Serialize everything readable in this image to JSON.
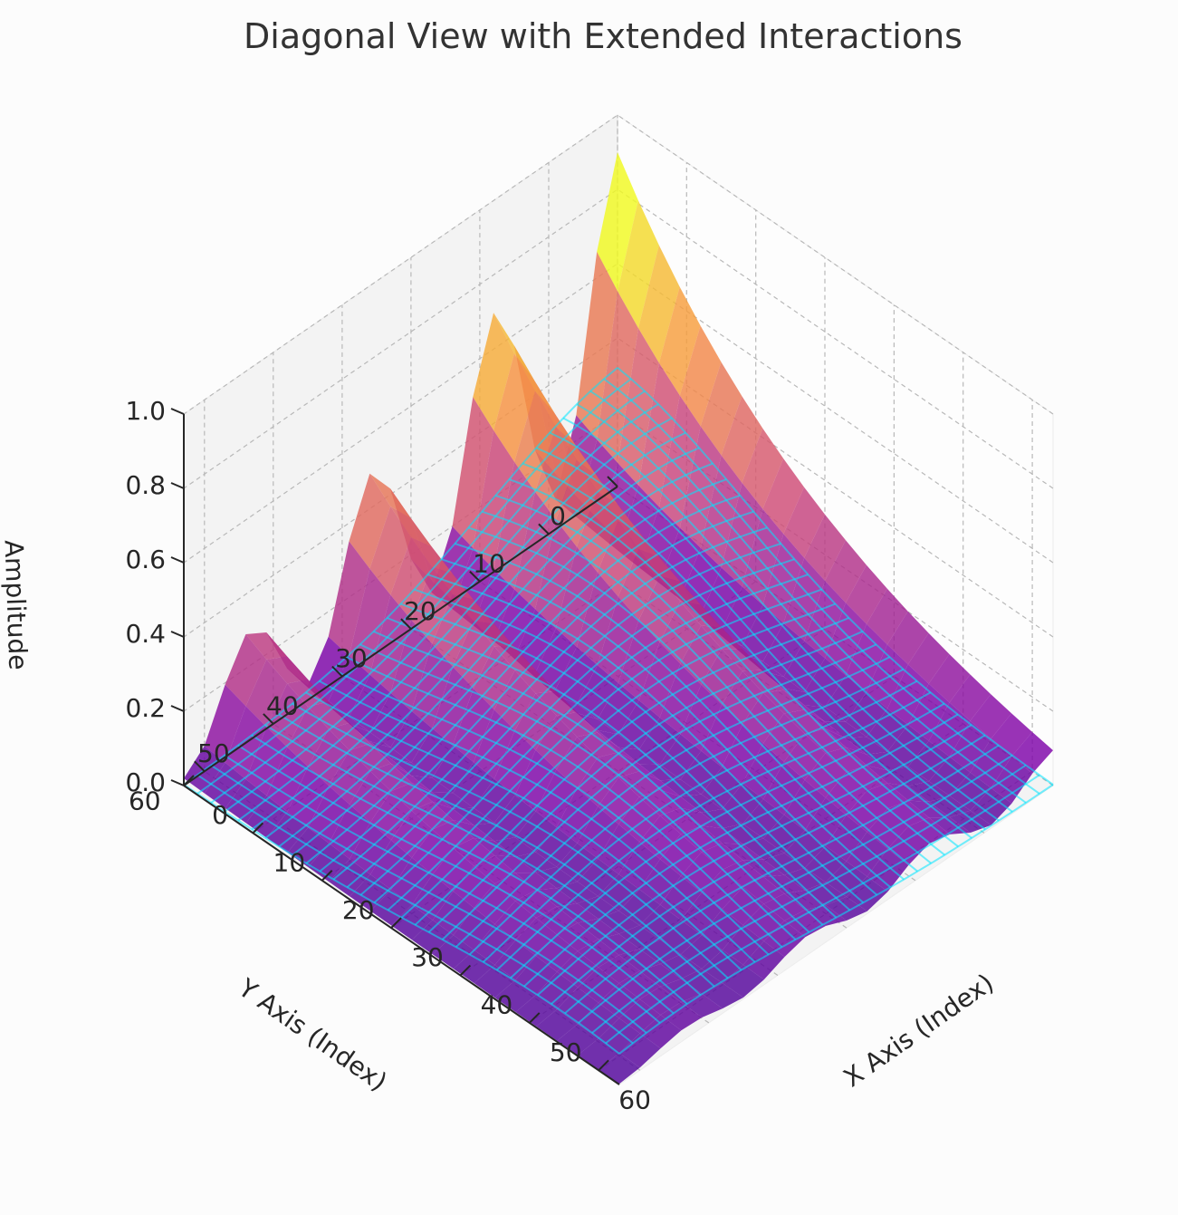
{
  "chart_data": {
    "type": "surface3d",
    "title": "Diagonal View with Extended Interactions",
    "xlabel": "X Axis (Index)",
    "ylabel": "Y Axis (Index)",
    "zlabel": "Amplitude",
    "x_ticks": [
      "0",
      "10",
      "20",
      "30",
      "40",
      "50",
      "60"
    ],
    "y_ticks": [
      "0",
      "10",
      "20",
      "30",
      "40",
      "50",
      "60"
    ],
    "z_ticks": [
      "0.0",
      "0.2",
      "0.4",
      "0.6",
      "0.8",
      "1.0"
    ],
    "xlim": [
      0,
      63
    ],
    "ylim": [
      0,
      63
    ],
    "zlim": [
      0,
      1
    ],
    "grid": true,
    "view": "diagonal",
    "colormap": "plasma",
    "series": [
      {
        "kind": "surface",
        "colormap": "plasma"
      },
      {
        "kind": "wireframe",
        "color": "#00e5ff"
      }
    ]
  }
}
